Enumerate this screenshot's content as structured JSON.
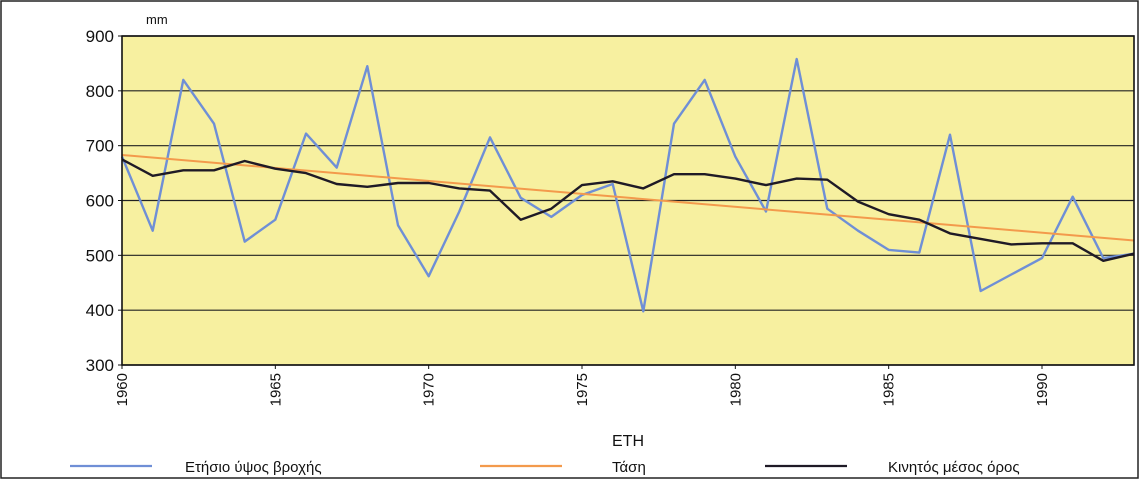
{
  "chart_data": {
    "type": "line",
    "title": "",
    "unit_label": "mm",
    "xlabel": "ΕΤΗ",
    "ylabel": "",
    "ylim": [
      300,
      900
    ],
    "xlim": [
      1960,
      1993
    ],
    "y_ticks": [
      300,
      400,
      500,
      600,
      700,
      800,
      900
    ],
    "x_ticks": [
      1960,
      1965,
      1970,
      1975,
      1980,
      1985,
      1990
    ],
    "x_tick_labels": [
      "1960",
      "1965",
      "1970",
      "1975",
      "1980",
      "1985",
      "1990"
    ],
    "y_tick_labels": [
      "300",
      "400",
      "500",
      "600",
      "700",
      "800",
      "900"
    ],
    "grid": true,
    "legend_position": "bottom",
    "colors": {
      "plot_background": "#f7f0a0",
      "grid": "#222222",
      "annual": "#6f8fd6",
      "trend": "#f39a4c",
      "moving_average": "#1f1a26"
    },
    "series": [
      {
        "name": "Ετήσιο ύψος βροχής",
        "x": [
          1960,
          1961,
          1962,
          1963,
          1964,
          1965,
          1966,
          1967,
          1968,
          1969,
          1970,
          1971,
          1972,
          1973,
          1974,
          1975,
          1976,
          1977,
          1978,
          1979,
          1980,
          1981,
          1982,
          1983,
          1984,
          1985,
          1986,
          1987,
          1988,
          1989,
          1990,
          1991,
          1992,
          1993
        ],
        "values": [
          680,
          545,
          820,
          740,
          525,
          565,
          722,
          660,
          845,
          555,
          462,
          580,
          715,
          605,
          570,
          610,
          630,
          398,
          740,
          820,
          680,
          580,
          858,
          585,
          545,
          510,
          505,
          720,
          435,
          465,
          495,
          607,
          495,
          503
        ]
      },
      {
        "name": "Τάση",
        "x": [
          1960,
          1993
        ],
        "values": [
          683,
          527
        ]
      },
      {
        "name": "Κινητός μέσος όρος",
        "x": [
          1960,
          1961,
          1962,
          1963,
          1964,
          1965,
          1966,
          1967,
          1968,
          1969,
          1970,
          1971,
          1972,
          1973,
          1974,
          1975,
          1976,
          1977,
          1978,
          1979,
          1980,
          1981,
          1982,
          1983,
          1984,
          1985,
          1986,
          1987,
          1988,
          1989,
          1990,
          1991,
          1992,
          1993
        ],
        "values": [
          675,
          645,
          655,
          655,
          672,
          658,
          650,
          630,
          625,
          632,
          632,
          622,
          618,
          565,
          585,
          628,
          635,
          622,
          648,
          648,
          640,
          628,
          640,
          638,
          598,
          575,
          565,
          540,
          530,
          520,
          522,
          522,
          490,
          503
        ]
      }
    ]
  }
}
